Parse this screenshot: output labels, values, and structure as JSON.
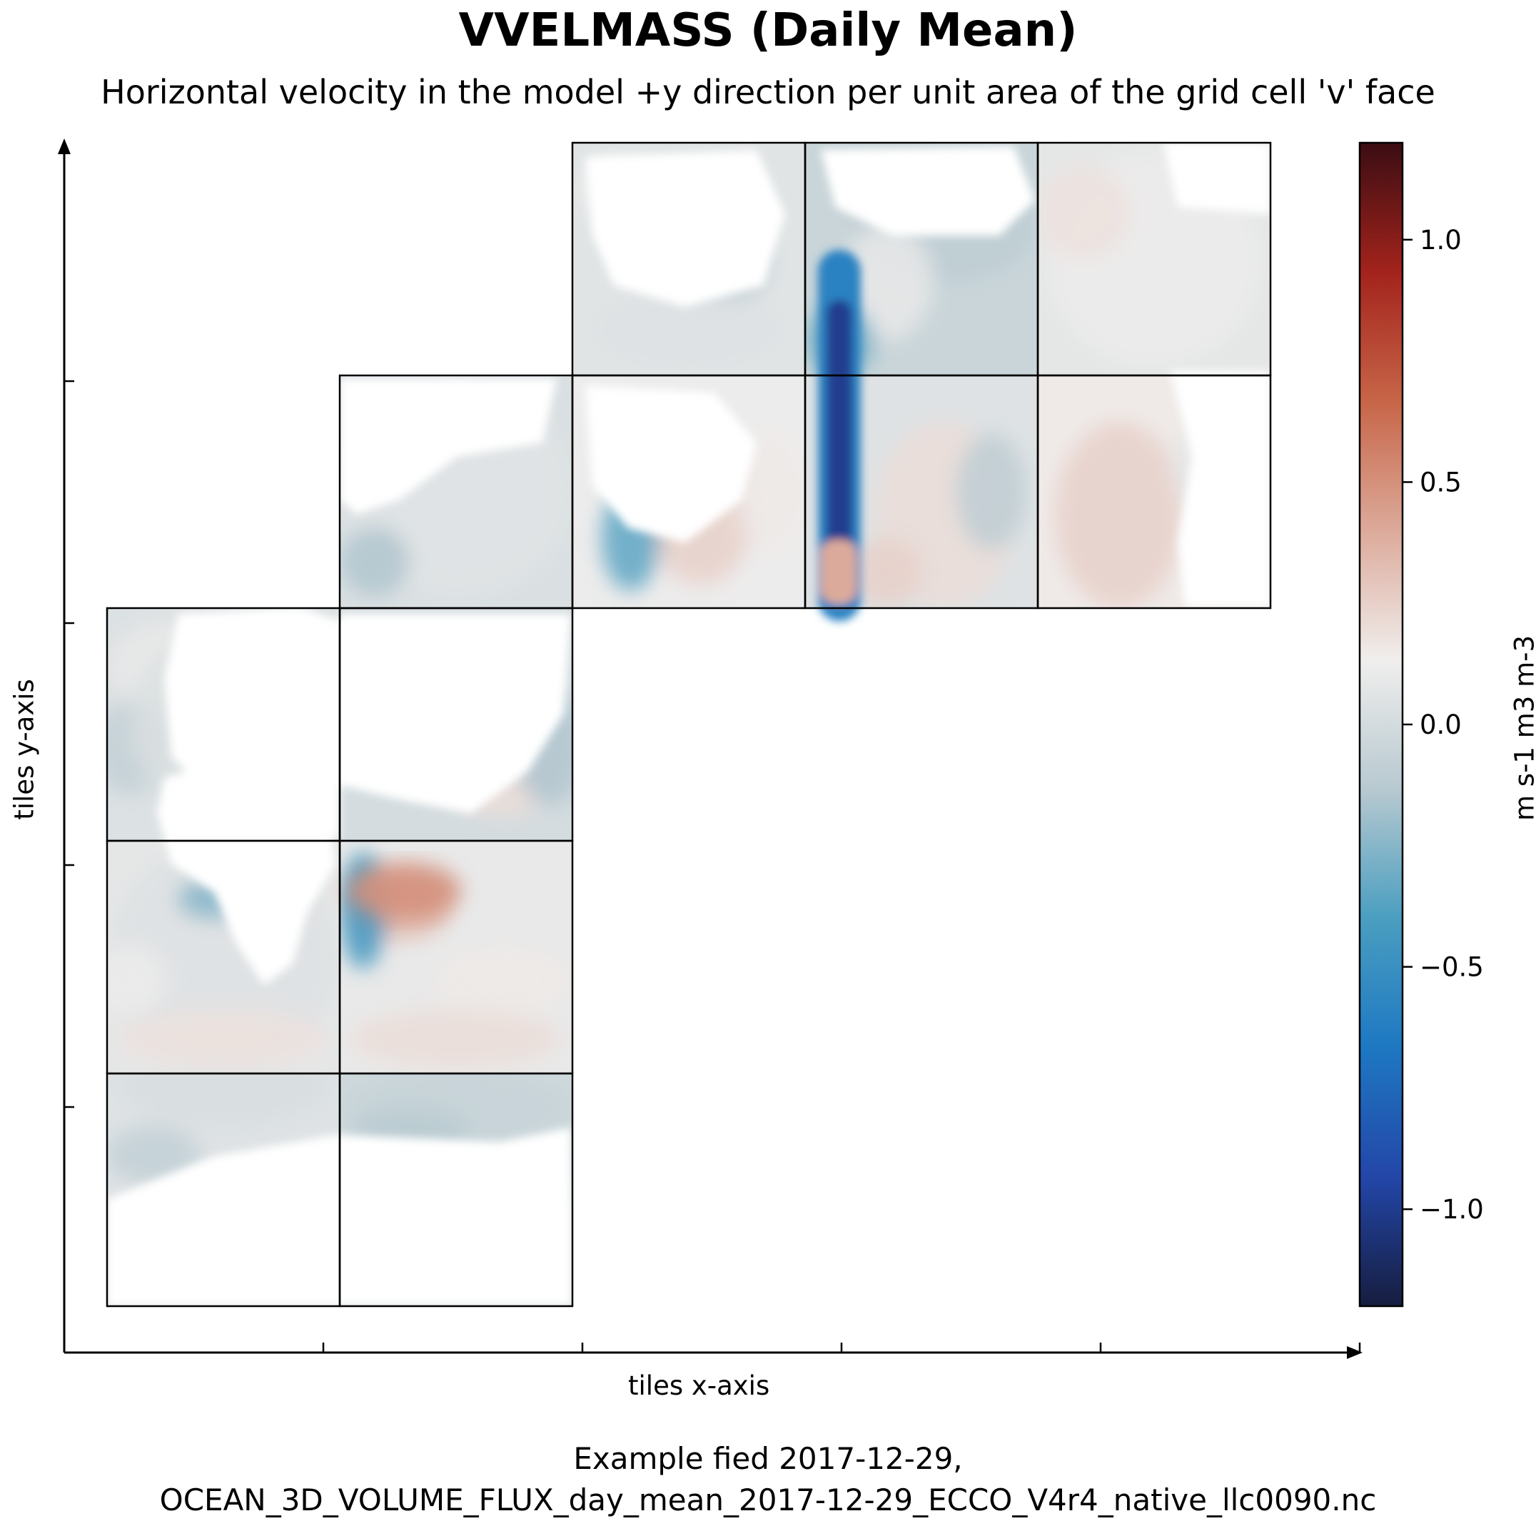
{
  "title": "VVELMASS (Daily Mean)",
  "subtitle": "Horizontal velocity in the model +y direction per unit area of the grid cell 'v' face",
  "caption": {
    "line1": "Example fied 2017-12-29,",
    "line2": "OCEAN_3D_VOLUME_FLUX_day_mean_2017-12-29_ECCO_V4r4_native_llc0090.nc"
  },
  "chart_data": {
    "type": "heatmap",
    "title": "VVELMASS (Daily Mean)",
    "subtitle": "Horizontal velocity in the model +y direction per unit area of the grid cell 'v' face",
    "xlabel": "tiles x-axis",
    "ylabel": "tiles y-axis",
    "colorbar": {
      "label": "m s-1 m3 m-3",
      "range": [
        -1.2,
        1.2
      ],
      "ticks": [
        1.0,
        0.5,
        0.0,
        -0.5,
        -1.0
      ],
      "tick_labels": [
        "1.0",
        "0.5",
        "0.0",
        "−0.5",
        "−1.0"
      ],
      "colormap": "balance",
      "colors": [
        "#161d3f",
        "#2346a8",
        "#1e78c2",
        "#4a9ec0",
        "#b7c9d0",
        "#f0eeed",
        "#dcaa9a",
        "#c76548",
        "#a3231c",
        "#3b0d13"
      ]
    },
    "grid": false,
    "x_ticks_count": 5,
    "y_ticks_count": 4,
    "tiles": [
      {
        "col": 0,
        "row": 0,
        "mean": 0.05
      },
      {
        "col": 0,
        "row": 1,
        "mean": 0.08
      },
      {
        "col": 0,
        "row": 2,
        "mean": 0.04
      },
      {
        "col": 1,
        "row": 0,
        "mean": -0.02
      },
      {
        "col": 1,
        "row": 1,
        "mean": 0.1
      },
      {
        "col": 1,
        "row": 2,
        "mean": 0.0
      },
      {
        "col": 1,
        "row": 3,
        "mean": 0.03
      },
      {
        "col": 2,
        "row": 3,
        "mean": 0.12
      },
      {
        "col": 2,
        "row": 4,
        "mean": 0.06
      },
      {
        "col": 3,
        "row": 3,
        "mean": 0.05
      },
      {
        "col": 3,
        "row": 4,
        "mean": -0.05
      },
      {
        "col": 4,
        "row": 3,
        "mean": 0.15
      },
      {
        "col": 4,
        "row": 4,
        "mean": 0.08
      }
    ],
    "features": [
      {
        "name": "strong-southward-jet",
        "value": -1.0
      },
      {
        "name": "northward-band-indian-ocean",
        "value": 0.5
      }
    ]
  }
}
